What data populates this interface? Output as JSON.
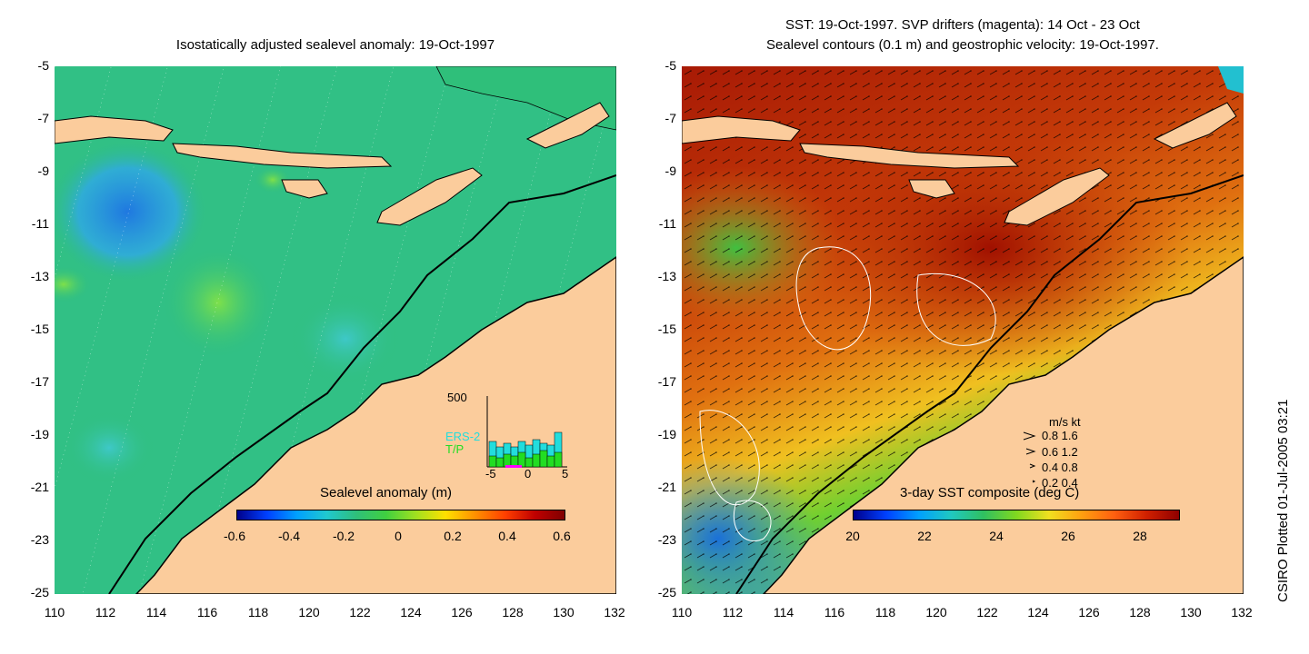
{
  "left_title": "Isostatically adjusted sealevel anomaly: 19-Oct-1997",
  "right_title_line1": "SST: 19-Oct-1997. SVP drifters (magenta): 14 Oct - 23 Oct",
  "right_title_line2": "Sealevel contours (0.1 m) and geostrophic velocity: 19-Oct-1997.",
  "y_ticks": [
    "-5",
    "-7",
    "-9",
    "-11",
    "-13",
    "-15",
    "-17",
    "-19",
    "-21",
    "-23",
    "-25"
  ],
  "x_ticks": [
    "110",
    "112",
    "114",
    "116",
    "118",
    "120",
    "122",
    "124",
    "126",
    "128",
    "130",
    "132"
  ],
  "left_colorbar": {
    "title": "Sealevel anomaly (m)",
    "labels": [
      "-0.6",
      "-0.4",
      "-0.2",
      "0",
      "0.2",
      "0.4",
      "0.6"
    ]
  },
  "right_colorbar": {
    "title": "3-day SST composite (deg C)",
    "labels": [
      "20",
      "22",
      "24",
      "26",
      "28"
    ]
  },
  "histogram": {
    "y_label": "500",
    "series1": "ERS-2",
    "series2": "T/P",
    "x_labels": [
      "-5",
      "0",
      "5"
    ]
  },
  "velocity_legend": {
    "header": "m/s  kt",
    "rows": [
      "0.8  1.6",
      "0.6  1.2",
      "0.4  0.8",
      "0.2  0.4"
    ]
  },
  "credit": "CSIRO Plotted 01-Jul-2005 03:21",
  "colors": {
    "land": "#fbcc9c",
    "sea_anomaly_base": "#2fbf7a",
    "sst_warm": "#b01c05",
    "sst_cool": "#2ca0e0",
    "ers2": "#22dddd",
    "tp": "#22dd22",
    "drifters": "#ff00ff"
  }
}
